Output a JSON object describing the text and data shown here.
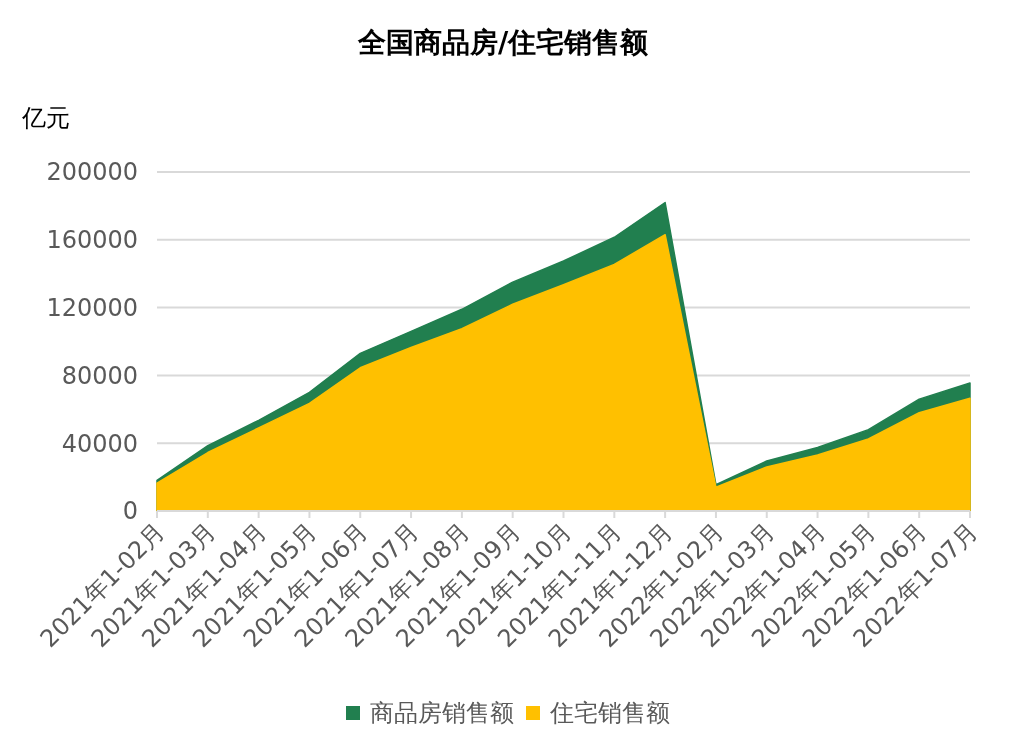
{
  "chart_data": {
    "type": "area",
    "title": "全国商品房/住宅销售额",
    "ylabel": "亿元",
    "categories": [
      "2021年1-02月",
      "2021年1-03月",
      "2021年1-04月",
      "2021年1-05月",
      "2021年1-06月",
      "2021年1-07月",
      "2021年1-08月",
      "2021年1-09月",
      "2021年1-10月",
      "2021年1-11月",
      "2021年1-12月",
      "2022年1-02月",
      "2022年1-03月",
      "2022年1-04月",
      "2022年1-05月",
      "2022年1-06月",
      "2022年1-07月"
    ],
    "series": [
      {
        "name": "商品房销售额",
        "color": "#217f4f",
        "values": [
          18000,
          38500,
          53500,
          70000,
          93000,
          106000,
          119000,
          135000,
          147500,
          161500,
          182000,
          15500,
          29500,
          37500,
          48000,
          66000,
          75500
        ]
      },
      {
        "name": "住宅销售额",
        "color": "#ffc000",
        "values": [
          16500,
          34500,
          49000,
          63500,
          84500,
          96500,
          107500,
          122000,
          133500,
          145500,
          163000,
          14000,
          26000,
          33000,
          42500,
          58000,
          66500
        ]
      }
    ],
    "ylim": [
      0,
      200000
    ],
    "yticks": [
      0,
      40000,
      80000,
      120000,
      160000,
      200000
    ],
    "grid": "y",
    "legend": "bottom"
  }
}
